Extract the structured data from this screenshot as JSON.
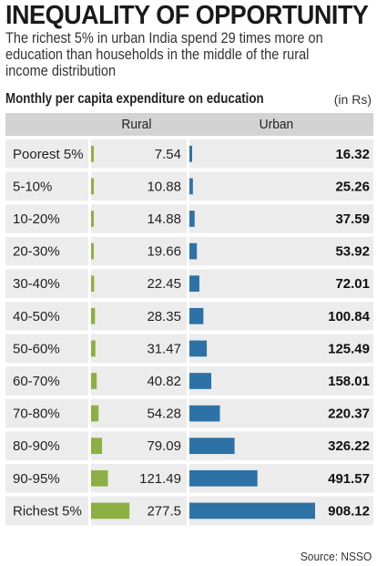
{
  "title": "INEQUALITY OF OPPORTUNITY",
  "subtitle": "The richest 5% in urban India spend 29 times more on education than households in the middle of the rural income distribution",
  "source": "Source: NSSO",
  "colors": {
    "rural": "#8cb043",
    "urban": "#2d72a6",
    "header": "#d3d3d3",
    "row": "#ececec"
  },
  "chart_data": {
    "type": "bar",
    "title": "INEQUALITY OF OPPORTUNITY",
    "ylabel": "Monthly per capita expenditure on education",
    "unit": "(in Rs)",
    "categories": [
      "Poorest 5%",
      "5-10%",
      "10-20%",
      "20-30%",
      "30-40%",
      "40-50%",
      "50-60%",
      "60-70%",
      "70-80%",
      "80-90%",
      "90-95%",
      "Richest 5%"
    ],
    "series": [
      {
        "name": "Rural",
        "values": [
          7.54,
          10.88,
          14.88,
          19.66,
          22.45,
          28.35,
          31.47,
          40.82,
          54.28,
          79.09,
          121.49,
          277.5
        ]
      },
      {
        "name": "Urban",
        "values": [
          16.32,
          25.26,
          37.59,
          53.92,
          72.01,
          100.84,
          125.49,
          158.01,
          220.37,
          326.22,
          491.57,
          908.12
        ]
      }
    ]
  }
}
